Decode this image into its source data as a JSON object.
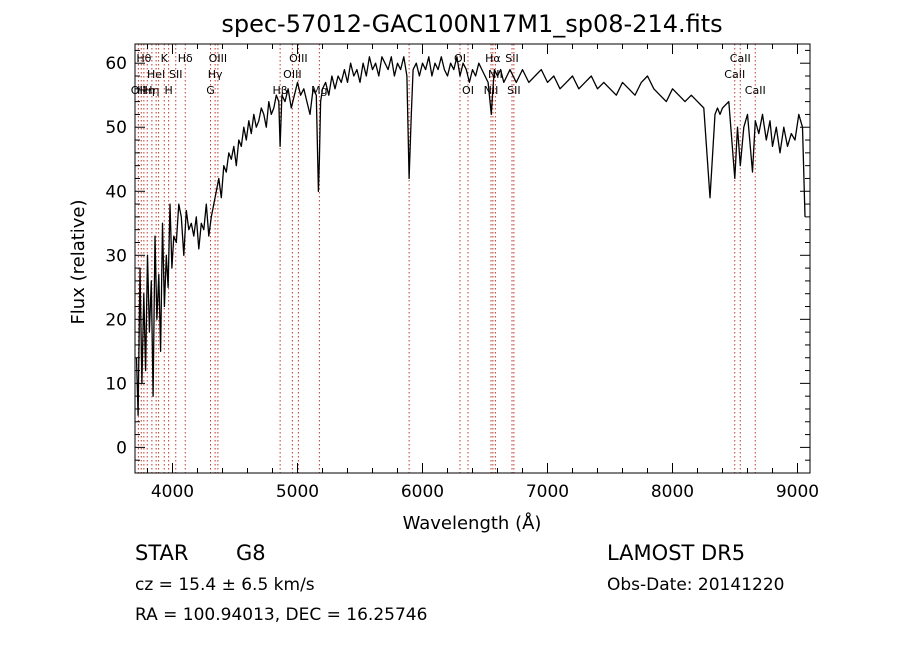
{
  "chart_data": {
    "type": "line",
    "title": "spec-57012-GAC100N17M1_sp08-214.fits",
    "xlabel": "Wavelength (Å)",
    "ylabel": "Flux (relative)",
    "xlim": [
      3700,
      9100
    ],
    "ylim": [
      -4,
      63
    ],
    "xticks": [
      4000,
      5000,
      6000,
      7000,
      8000,
      9000
    ],
    "yticks": [
      0,
      10,
      20,
      30,
      40,
      50,
      60
    ],
    "grid": false,
    "legend": "none",
    "line_color": "#000000",
    "marker_color": "#c0392b",
    "series": [
      {
        "x": [
          3712,
          3725,
          3740,
          3755,
          3770,
          3785,
          3800,
          3815,
          3830,
          3845,
          3860,
          3875,
          3890,
          3905,
          3920,
          3935,
          3950,
          3965,
          3980,
          3995,
          4010,
          4030,
          4050,
          4070,
          4090,
          4110,
          4130,
          4150,
          4170,
          4190,
          4210,
          4230,
          4250,
          4270,
          4290,
          4310,
          4330,
          4350,
          4370,
          4390,
          4410,
          4430,
          4450,
          4470,
          4490,
          4510,
          4530,
          4550,
          4570,
          4590,
          4610,
          4630,
          4650,
          4670,
          4690,
          4710,
          4730,
          4750,
          4770,
          4790,
          4810,
          4830,
          4850,
          4861,
          4875,
          4900,
          4925,
          4950,
          4975,
          5000,
          5025,
          5050,
          5075,
          5100,
          5125,
          5150,
          5167,
          5175,
          5185,
          5200,
          5225,
          5250,
          5275,
          5300,
          5325,
          5350,
          5375,
          5400,
          5425,
          5450,
          5475,
          5500,
          5525,
          5550,
          5575,
          5600,
          5625,
          5650,
          5675,
          5700,
          5725,
          5750,
          5775,
          5800,
          5825,
          5850,
          5875,
          5893,
          5910,
          5925,
          5950,
          5975,
          6000,
          6025,
          6050,
          6075,
          6100,
          6125,
          6150,
          6175,
          6200,
          6225,
          6250,
          6275,
          6300,
          6325,
          6350,
          6375,
          6400,
          6425,
          6450,
          6475,
          6500,
          6525,
          6550,
          6563,
          6575,
          6600,
          6625,
          6650,
          6675,
          6700,
          6725,
          6750,
          6775,
          6800,
          6850,
          6900,
          6950,
          7000,
          7050,
          7100,
          7150,
          7200,
          7250,
          7300,
          7350,
          7400,
          7450,
          7500,
          7550,
          7600,
          7650,
          7700,
          7750,
          7800,
          7850,
          7900,
          7950,
          8000,
          8050,
          8100,
          8150,
          8200,
          8250,
          8300,
          8340,
          8360,
          8380,
          8400,
          8450,
          8498,
          8520,
          8542,
          8570,
          8600,
          8640,
          8662,
          8690,
          8720,
          8750,
          8780,
          8800,
          8830,
          8860,
          8890,
          8920,
          8950,
          8980,
          9010,
          9040,
          9060
        ],
        "y": [
          14,
          5,
          28,
          10,
          24,
          12,
          30,
          18,
          26,
          8,
          33,
          20,
          27,
          15,
          35,
          22,
          30,
          25,
          38,
          28,
          33,
          32,
          38,
          36,
          30,
          37,
          34,
          35,
          33,
          36,
          31,
          35,
          34,
          38,
          33,
          36,
          38,
          40,
          42,
          39,
          44,
          43,
          46,
          45,
          47,
          44,
          48,
          47,
          50,
          48,
          51,
          49,
          52,
          50,
          51,
          53,
          52,
          50,
          54,
          52,
          53,
          55,
          54,
          47,
          55,
          54,
          56,
          53,
          55,
          57,
          55,
          56,
          54,
          52,
          56,
          55,
          40,
          45,
          54,
          56,
          57,
          55,
          58,
          56,
          58,
          57,
          59,
          57,
          60,
          58,
          59,
          57,
          60,
          58,
          61,
          59,
          60,
          58,
          61,
          60,
          59,
          61,
          58,
          60,
          59,
          61,
          58,
          42,
          52,
          59,
          60,
          58,
          60,
          59,
          61,
          58,
          60,
          59,
          61,
          59,
          58,
          60,
          59,
          61,
          58,
          60,
          59,
          57,
          59,
          58,
          60,
          59,
          58,
          57,
          52,
          56,
          59,
          58,
          59,
          57,
          58,
          59,
          58,
          57,
          58,
          59,
          57,
          58,
          59,
          57,
          58,
          56,
          57,
          58,
          56,
          57,
          58,
          56,
          57,
          56,
          55,
          57,
          56,
          55,
          57,
          58,
          56,
          55,
          54,
          56,
          55,
          54,
          55,
          54,
          53,
          39,
          52,
          53,
          52,
          53,
          54,
          42,
          50,
          44,
          50,
          52,
          43,
          51,
          49,
          52,
          48,
          51,
          47,
          50,
          46,
          50,
          47,
          49,
          48,
          52,
          50,
          36
        ]
      }
    ],
    "line_markers": [
      {
        "wl": 3727,
        "label": "OII",
        "row": 3
      },
      {
        "wl": 3750,
        "label": "H",
        "row": 3
      },
      {
        "wl": 3771,
        "label": "Hθ",
        "row": 1
      },
      {
        "wl": 3798,
        "label": "Hη",
        "row": 3
      },
      {
        "wl": 3835,
        "label": "Hη",
        "row": 3
      },
      {
        "wl": 3869,
        "label": "HeI",
        "row": 2
      },
      {
        "wl": 3889,
        "label": "",
        "row": 1
      },
      {
        "wl": 3934,
        "label": "K",
        "row": 1
      },
      {
        "wl": 3969,
        "label": "H",
        "row": 3
      },
      {
        "wl": 4026,
        "label": "SII",
        "row": 2
      },
      {
        "wl": 4102,
        "label": "Hδ",
        "row": 1
      },
      {
        "wl": 4304,
        "label": "G",
        "row": 3
      },
      {
        "wl": 4341,
        "label": "Hγ",
        "row": 2
      },
      {
        "wl": 4363,
        "label": "OIII",
        "row": 1
      },
      {
        "wl": 4861,
        "label": "Hβ",
        "row": 3
      },
      {
        "wl": 4959,
        "label": "OIII",
        "row": 2
      },
      {
        "wl": 5007,
        "label": "OIII",
        "row": 1
      },
      {
        "wl": 5175,
        "label": "Mg",
        "row": 3
      },
      {
        "wl": 5893,
        "label": "",
        "row": 1
      },
      {
        "wl": 6300,
        "label": "OI",
        "row": 1
      },
      {
        "wl": 6364,
        "label": "OI",
        "row": 3
      },
      {
        "wl": 6548,
        "label": "NII",
        "row": 3
      },
      {
        "wl": 6563,
        "label": "Hα",
        "row": 1
      },
      {
        "wl": 6583,
        "label": "NII",
        "row": 2
      },
      {
        "wl": 6716,
        "label": "SII",
        "row": 1
      },
      {
        "wl": 6731,
        "label": "SII",
        "row": 3
      },
      {
        "wl": 8498,
        "label": "CaII",
        "row": 2
      },
      {
        "wl": 8542,
        "label": "CaII",
        "row": 1
      },
      {
        "wl": 8662,
        "label": "CaII",
        "row": 3
      }
    ]
  },
  "info": {
    "object_class": "STAR",
    "subclass": "G8",
    "survey": "LAMOST  DR5",
    "cz_line": "cz = 15.4 ± 6.5 km/s",
    "obs_date_line": "Obs-Date: 20141220",
    "coords_line": "RA = 100.94013, DEC =  16.25746"
  }
}
